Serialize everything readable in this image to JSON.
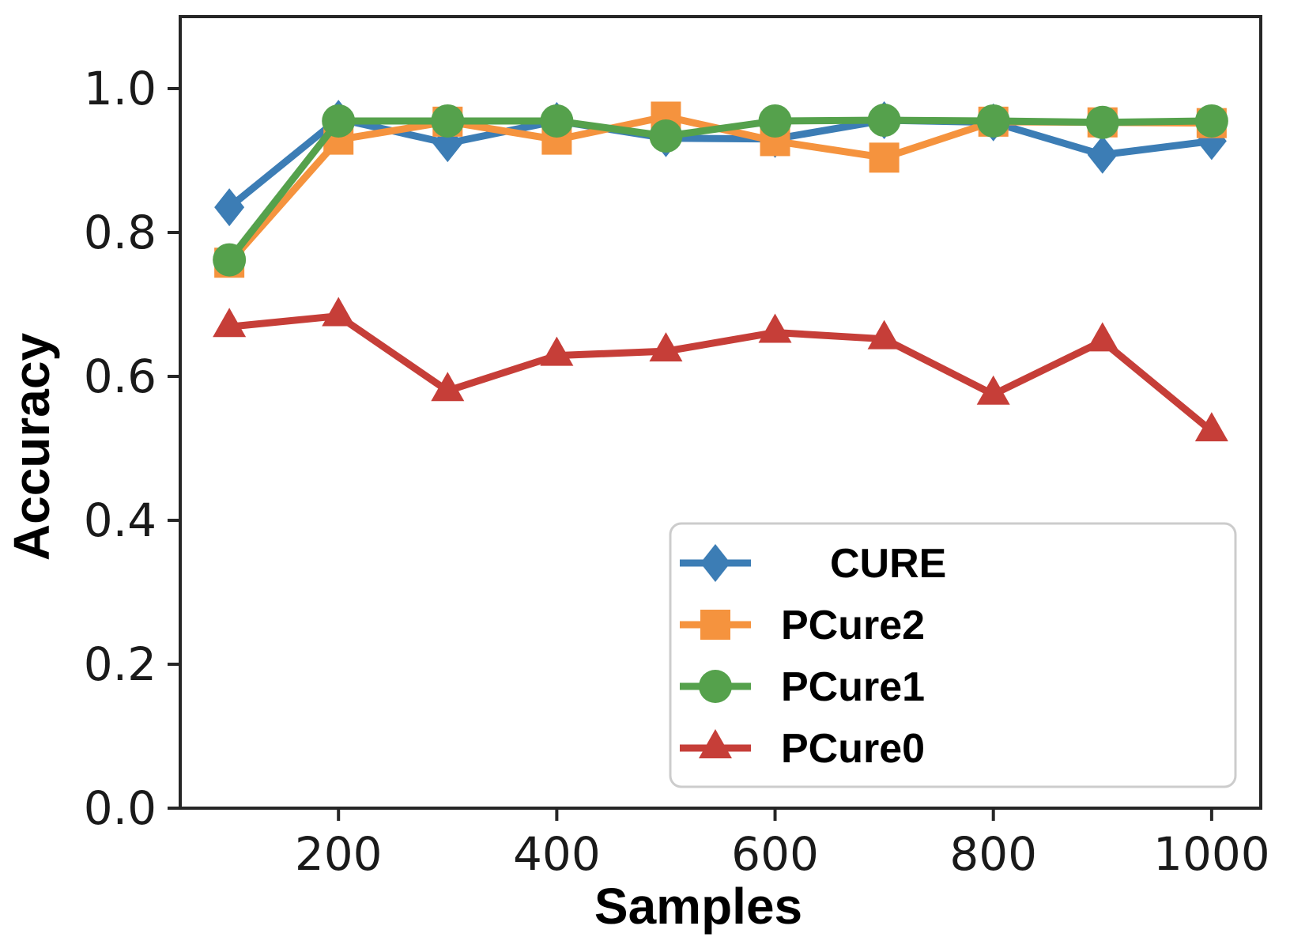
{
  "chart_data": {
    "type": "line",
    "title": "",
    "xlabel": "Samples",
    "ylabel": "Accuracy",
    "x": [
      100,
      200,
      300,
      400,
      500,
      600,
      700,
      800,
      900,
      1000
    ],
    "series": [
      {
        "name": "CURE",
        "label": " CURE",
        "color": "#3c7db5",
        "marker": "diamond",
        "values": [
          0.835,
          0.958,
          0.924,
          0.955,
          0.931,
          0.93,
          0.956,
          0.953,
          0.908,
          0.927
        ]
      },
      {
        "name": "PCure2",
        "label": "PCure2",
        "color": "#f5933e",
        "marker": "square",
        "values": [
          0.758,
          0.929,
          0.954,
          0.929,
          0.961,
          0.927,
          0.904,
          0.954,
          0.953,
          0.952
        ]
      },
      {
        "name": "PCure1",
        "label": "PCure1",
        "color": "#55a14c",
        "marker": "circle",
        "values": [
          0.762,
          0.955,
          0.955,
          0.955,
          0.934,
          0.955,
          0.956,
          0.955,
          0.953,
          0.955
        ]
      },
      {
        "name": "PCure0",
        "label": "PCure0",
        "color": "#c63e38",
        "marker": "triangle-up",
        "values": [
          0.669,
          0.684,
          0.58,
          0.629,
          0.635,
          0.661,
          0.652,
          0.575,
          0.649,
          0.524
        ]
      }
    ],
    "xlim": [
      55,
      1045
    ],
    "ylim": [
      0,
      1.1
    ],
    "xticks": {
      "values": [
        200,
        400,
        600,
        800,
        1000
      ],
      "labels": [
        "200",
        "400",
        "600",
        "800",
        "1000"
      ]
    },
    "yticks": {
      "values": [
        0.0,
        0.2,
        0.4,
        0.6,
        0.8,
        1.0
      ],
      "labels": [
        "0.0",
        "0.2",
        "0.4",
        "0.6",
        "0.8",
        "1.0"
      ]
    },
    "grid": false,
    "legend": {
      "position": "lower right",
      "entries": [
        " CURE",
        "PCure2",
        "PCure1",
        "PCure0"
      ]
    },
    "axis_color": "#262626",
    "legend_border_color": "#cccccc",
    "background_color": "#ffffff"
  }
}
